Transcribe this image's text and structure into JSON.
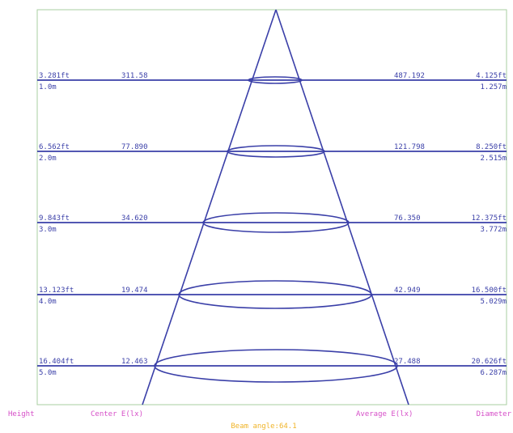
{
  "levels": [
    {
      "height_ft": "3.281ft",
      "height_m": "1.0m",
      "center_lux": "311.58",
      "average_lux": "487.192",
      "diameter_ft": "4.125ft",
      "diameter_m": "1.257m"
    },
    {
      "height_ft": "6.562ft",
      "height_m": "2.0m",
      "center_lux": "77.890",
      "average_lux": "121.798",
      "diameter_ft": "8.250ft",
      "diameter_m": "2.515m"
    },
    {
      "height_ft": "9.843ft",
      "height_m": "3.0m",
      "center_lux": "34.620",
      "average_lux": "76.350",
      "diameter_ft": "12.375ft",
      "diameter_m": "3.772m"
    },
    {
      "height_ft": "13.123ft",
      "height_m": "4.0m",
      "center_lux": "19.474",
      "average_lux": "42.949",
      "diameter_ft": "16.500ft",
      "diameter_m": "5.029m"
    },
    {
      "height_ft": "16.404ft",
      "height_m": "5.0m",
      "center_lux": "12.463",
      "average_lux": "27.488",
      "diameter_ft": "20.626ft",
      "diameter_m": "6.287m"
    }
  ],
  "footer": {
    "height_label": "Height",
    "center_label": "Center E(lx)",
    "average_label": "Average E(lx)",
    "diameter_label": "Diameter",
    "beam_angle": "Beam angle:64.1"
  },
  "colors": {
    "line": "#3a3fa8",
    "frame": "#a9cfa0",
    "footer_text": "#d64fc8",
    "beam_text": "#f0b429"
  }
}
